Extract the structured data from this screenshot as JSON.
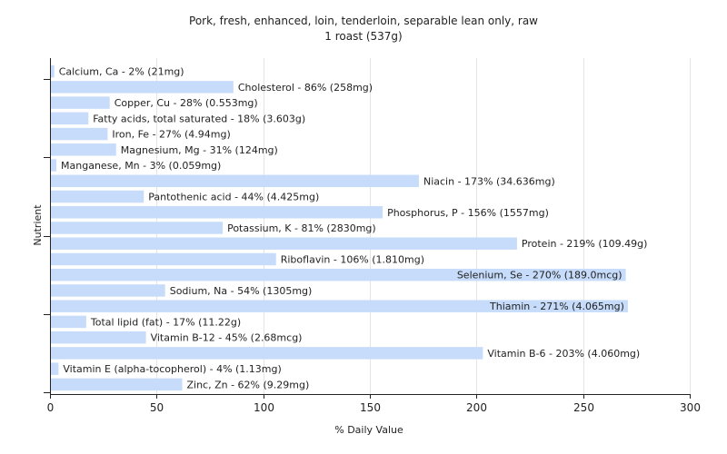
{
  "chart_data": {
    "type": "bar",
    "orientation": "horizontal",
    "title": "Pork, fresh, enhanced, loin, tenderloin, separable lean only, raw",
    "subtitle": "1 roast (537g)",
    "xlabel": "% Daily Value",
    "ylabel": "Nutrient",
    "xlim": [
      0,
      300
    ],
    "xticks": [
      0,
      50,
      100,
      150,
      200,
      250,
      300
    ],
    "grid": true,
    "colors": {
      "bar": "#c6dcfa",
      "grid": "#e4e4e4",
      "axis": "#222222"
    },
    "bars": [
      {
        "label": "Calcium, Ca - 2% (21mg)",
        "value": 2
      },
      {
        "label": "Cholesterol - 86% (258mg)",
        "value": 86
      },
      {
        "label": "Copper, Cu - 28% (0.553mg)",
        "value": 28
      },
      {
        "label": "Fatty acids, total saturated - 18% (3.603g)",
        "value": 18
      },
      {
        "label": "Iron, Fe - 27% (4.94mg)",
        "value": 27
      },
      {
        "label": "Magnesium, Mg - 31% (124mg)",
        "value": 31
      },
      {
        "label": "Manganese, Mn - 3% (0.059mg)",
        "value": 3
      },
      {
        "label": "Niacin - 173% (34.636mg)",
        "value": 173
      },
      {
        "label": "Pantothenic acid - 44% (4.425mg)",
        "value": 44
      },
      {
        "label": "Phosphorus, P - 156% (1557mg)",
        "value": 156
      },
      {
        "label": "Potassium, K - 81% (2830mg)",
        "value": 81
      },
      {
        "label": "Protein - 219% (109.49g)",
        "value": 219
      },
      {
        "label": "Riboflavin - 106% (1.810mg)",
        "value": 106
      },
      {
        "label": "Selenium, Se - 270% (189.0mcg)",
        "value": 270
      },
      {
        "label": "Sodium, Na - 54% (1305mg)",
        "value": 54
      },
      {
        "label": "Thiamin - 271% (4.065mg)",
        "value": 271
      },
      {
        "label": "Total lipid (fat) - 17% (11.22g)",
        "value": 17
      },
      {
        "label": "Vitamin B-12 - 45% (2.68mcg)",
        "value": 45
      },
      {
        "label": "Vitamin B-6 - 203% (4.060mg)",
        "value": 203
      },
      {
        "label": "Vitamin E (alpha-tocopherol) - 4% (1.13mg)",
        "value": 4
      },
      {
        "label": "Zinc, Zn - 62% (9.29mg)",
        "value": 62
      }
    ]
  }
}
